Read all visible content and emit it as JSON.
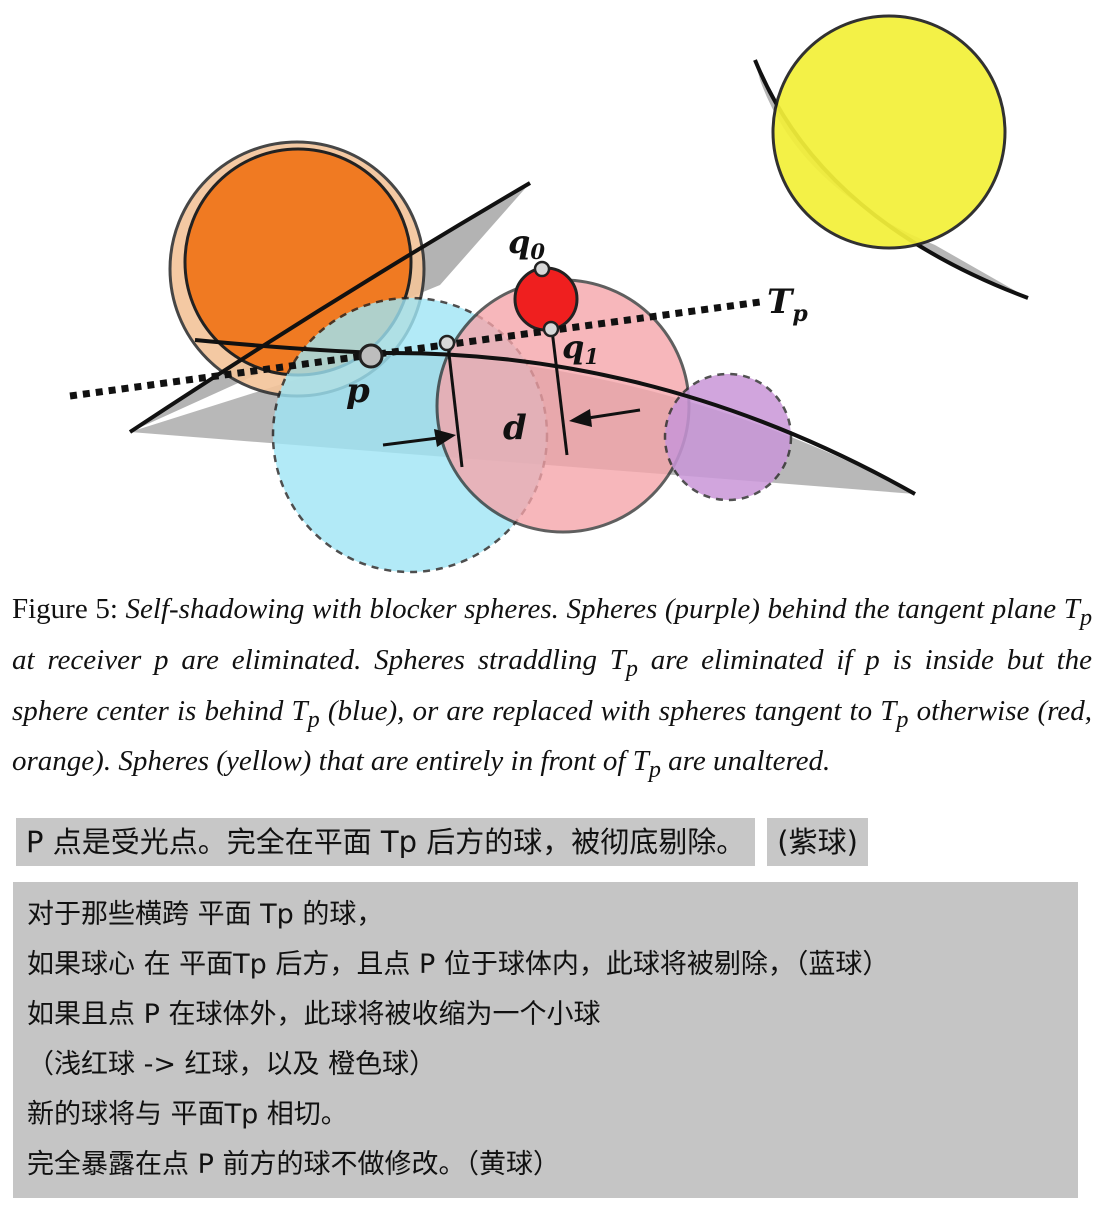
{
  "figure": {
    "labels": {
      "q0": "q",
      "q0_sub": "0",
      "q1": "q",
      "q1_sub": "1",
      "tp": "T",
      "tp_sub": "p",
      "p": "p",
      "d": "d"
    },
    "colors": {
      "orange": "#f07a22",
      "orange_light": "#f3c49a",
      "yellow": "#f3f03a",
      "blue": "#9fe6f6",
      "pink": "#f6a4a9",
      "red": "#ef1f1f",
      "purple": "#c996d8",
      "shadow": "#9a9a9a"
    }
  },
  "caption": {
    "figure_label": "Figure 5:",
    "text_1": "Self-shadowing with blocker spheres. Spheres (purple) behind the tangent plane T",
    "sub_1": "p",
    "text_2": " at receiver p are eliminated. Spheres straddling T",
    "sub_2": "p",
    "text_3": " are eliminated if p is inside but the sphere center is behind T",
    "sub_3": "p",
    "text_4": " (blue), or are replaced with spheres tangent to T",
    "sub_4": "p",
    "text_5": " otherwise (red, orange). Spheres (yellow) that are entirely in front of T",
    "sub_5": "p",
    "text_6": " are unaltered."
  },
  "note_top": {
    "main": "P  点是受光点。完全在平面  Tp  后方的球，被彻底剔除。",
    "tag": "(紫球)"
  },
  "note_box": {
    "lines": [
      "对于那些横跨  平面  Tp  的球，",
      "如果球心  在  平面Tp  后方，且点  P  位于球体内，此球将被剔除，（蓝球）",
      "如果且点  P  在球体外，此球将被收缩为一个小球",
      "（浅红球  ->  红球，以及  橙色球）",
      "新的球将与  平面Tp  相切。",
      "完全暴露在点  P  前方的球不做修改。（黄球）"
    ]
  }
}
